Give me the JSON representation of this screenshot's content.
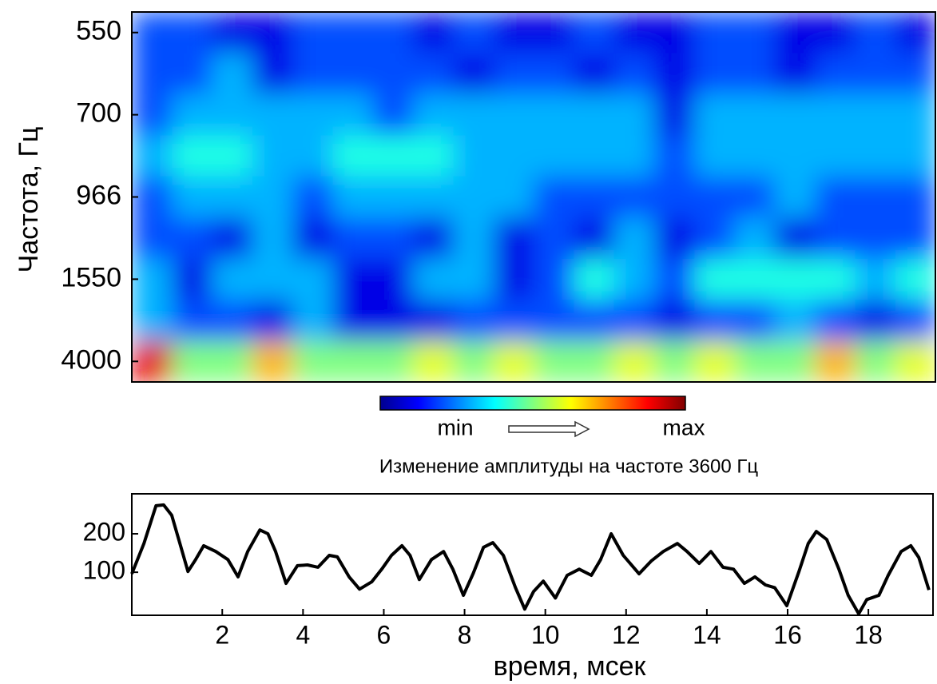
{
  "chart_data": [
    {
      "type": "heatmap",
      "y_label": "Частота, Гц",
      "y": [
        550,
        null,
        700,
        null,
        966,
        null,
        1550,
        null,
        4000
      ],
      "values": [
        [
          2,
          2,
          1,
          1,
          2,
          2,
          2,
          1,
          2,
          1,
          1,
          2,
          1,
          1,
          2,
          2,
          1,
          1,
          2,
          1
        ],
        [
          2,
          2,
          3,
          1,
          2,
          2,
          2,
          2,
          1,
          2,
          2,
          1,
          2,
          1,
          2,
          2,
          1,
          2,
          2,
          2
        ],
        [
          2,
          3,
          3,
          3,
          3,
          3,
          2,
          3,
          3,
          3,
          3,
          3,
          3,
          1,
          3,
          3,
          3,
          3,
          3,
          3
        ],
        [
          3,
          4,
          4,
          3,
          3,
          4,
          4,
          4,
          3,
          3,
          3,
          3,
          3,
          2,
          3,
          3,
          3,
          3,
          3,
          3
        ],
        [
          2,
          3,
          3,
          3,
          2,
          3,
          3,
          3,
          3,
          3,
          2,
          2,
          2,
          2,
          2,
          2,
          3,
          2,
          2,
          2
        ],
        [
          2,
          2,
          1,
          3,
          1,
          2,
          2,
          1,
          3,
          1,
          2,
          1,
          3,
          1,
          2,
          3,
          1,
          2,
          2,
          2
        ],
        [
          3,
          1,
          3,
          3,
          3,
          1,
          1,
          3,
          3,
          1,
          2,
          4,
          3,
          2,
          4,
          4,
          4,
          4,
          3,
          4
        ],
        [
          3,
          2,
          2,
          1,
          3,
          1,
          1,
          1,
          2,
          2,
          2,
          2,
          2,
          1,
          2,
          2,
          3,
          2,
          1,
          2
        ],
        [
          9,
          5,
          5,
          7,
          5,
          5,
          5,
          6,
          5,
          6,
          5,
          5,
          6,
          5,
          6,
          5,
          5,
          7,
          5,
          6
        ]
      ],
      "zlim": [
        0,
        10
      ],
      "colorbar": {
        "min_label": "min",
        "max_label": "max"
      }
    },
    {
      "type": "line",
      "title": "Изменение амплитуды на частоте 3600 Гц",
      "x_label": "время, мсек",
      "color": "#000000",
      "x": [
        -0.24,
        0.06,
        0.36,
        0.55,
        0.75,
        0.95,
        1.15,
        1.34,
        1.54,
        1.84,
        2.14,
        2.39,
        2.63,
        2.93,
        3.13,
        3.32,
        3.58,
        3.86,
        4.11,
        4.37,
        4.65,
        4.85,
        5.14,
        5.4,
        5.7,
        5.95,
        6.19,
        6.45,
        6.65,
        6.88,
        7.18,
        7.48,
        7.71,
        7.97,
        8.21,
        8.47,
        8.7,
        8.96,
        9.26,
        9.49,
        9.71,
        9.95,
        10.25,
        10.54,
        10.84,
        11.14,
        11.37,
        11.63,
        11.93,
        12.32,
        12.62,
        12.92,
        13.27,
        13.51,
        13.81,
        14.1,
        14.4,
        14.66,
        14.93,
        15.19,
        15.45,
        15.68,
        15.98,
        16.28,
        16.51,
        16.71,
        16.97,
        17.27,
        17.5,
        17.76,
        17.96,
        18.26,
        18.49,
        18.81,
        19.05,
        19.25,
        19.5
      ],
      "values": [
        96,
        175,
        273,
        275,
        248,
        175,
        102,
        133,
        169,
        154,
        133,
        88,
        154,
        210,
        200,
        154,
        71,
        117,
        119,
        113,
        144,
        140,
        88,
        56,
        75,
        108,
        144,
        169,
        144,
        81,
        133,
        154,
        108,
        40,
        96,
        165,
        177,
        144,
        60,
        4,
        50,
        77,
        33,
        92,
        108,
        92,
        133,
        200,
        144,
        96,
        129,
        154,
        175,
        154,
        123,
        154,
        113,
        108,
        71,
        88,
        67,
        60,
        13,
        102,
        175,
        206,
        185,
        108,
        40,
        -8,
        29,
        40,
        92,
        154,
        169,
        138,
        54
      ],
      "xlim": [
        -0.24,
        19.6
      ],
      "ylim": [
        -12,
        304
      ],
      "xticks": [
        2,
        4,
        6,
        8,
        10,
        12,
        14,
        16,
        18
      ],
      "yticks": [
        100,
        200
      ]
    }
  ]
}
